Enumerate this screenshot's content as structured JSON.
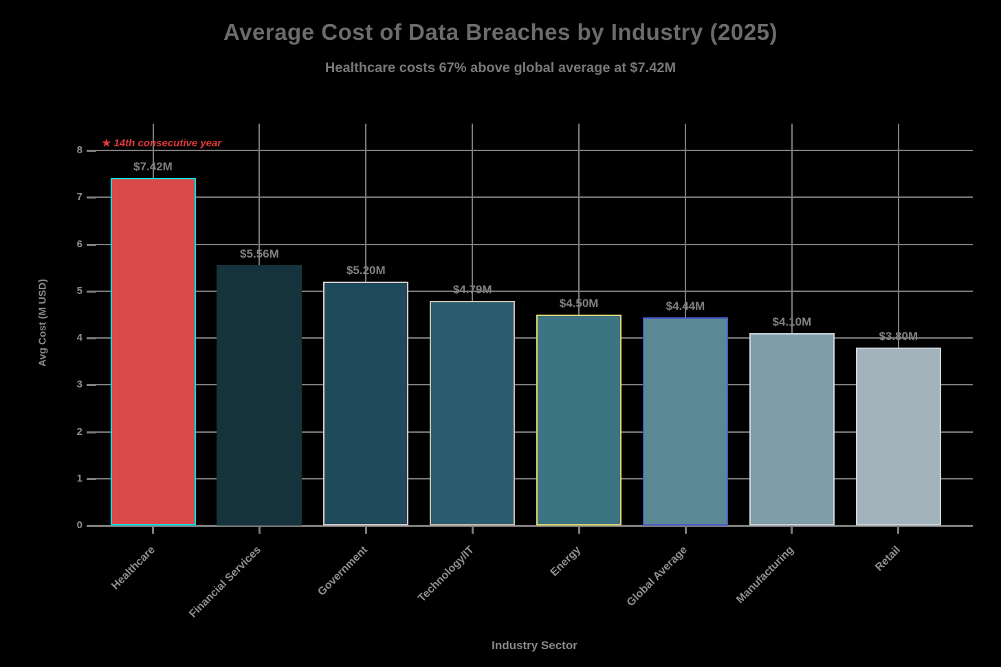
{
  "title": "Average Cost of Data Breaches by Industry (2025)",
  "subtitle": "Healthcare costs 67% above global average at $7.42M",
  "annotation": {
    "star": "★",
    "text": "14th consecutive year",
    "color": "#e03a3a"
  },
  "axes": {
    "x_title": "Industry Sector",
    "y_title": "Avg Cost (M USD)"
  },
  "colors": {
    "background": "#000000",
    "grid": "#7d7d7d",
    "title_text": "#6b6b6b",
    "tick_text": "#8f8f8f",
    "highlight_bar": "#d94a4a",
    "highlight_edge": "#00e0e0"
  },
  "chart_data": {
    "type": "bar",
    "title": "Average Cost of Data Breaches by Industry (2025)",
    "subtitle": "Healthcare costs 67% above global average at $7.42M",
    "xlabel": "Industry Sector",
    "ylabel": "Avg Cost (M USD)",
    "ylim": [
      0,
      8
    ],
    "y_ticks": [
      0,
      1,
      2,
      3,
      4,
      5,
      6,
      7,
      8
    ],
    "grid": true,
    "legend_position": "none",
    "categories": [
      "Healthcare",
      "Financial Services",
      "Government",
      "Technology/IT",
      "Energy",
      "Global Average",
      "Manufacturing",
      "Retail"
    ],
    "values": [
      7.42,
      5.56,
      5.2,
      4.79,
      4.5,
      4.44,
      4.1,
      3.8
    ],
    "value_labels": [
      "$7.42M",
      "$5.56M",
      "$5.20M",
      "$4.79M",
      "$4.50M",
      "$4.44M",
      "$4.10M",
      "$3.80M"
    ],
    "bar_colors": [
      "#d94a4a",
      "#15333a",
      "#1f4a5c",
      "#2b5d6e",
      "#3d7482",
      "#5a8894",
      "#7e9da8",
      "#a2b3bc"
    ],
    "edge_colors": [
      "#00e0e0",
      "#15333a",
      "#dccccc",
      "#cfc0b2",
      "#ded875",
      "#4a58cc",
      "#ccd6da",
      "#ccd6da"
    ],
    "annotation": "★ 14th consecutive year",
    "annotation_y": 8
  }
}
